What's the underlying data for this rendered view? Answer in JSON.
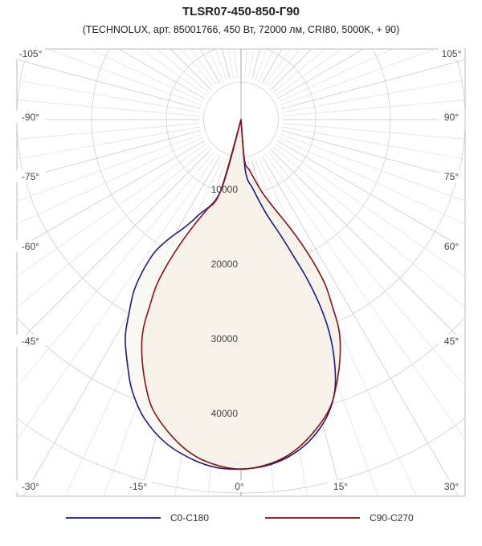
{
  "chart_data": {
    "type": "polar-luminous-intensity",
    "title": "TLSR07-450-850-Г90",
    "subtitle": "(TECHNOLUX, арт. 85001766, 450 Вт, 72000 лм, CRI80, 5000K, + 90)",
    "radial_ticks": [
      "10000",
      "20000",
      "30000",
      "40000"
    ],
    "radial_tick_values": [
      10000,
      20000,
      30000,
      40000
    ],
    "angle_ticks_left": [
      "-105°",
      "-90°",
      "-75°",
      "-60°",
      "-45°",
      "-30°",
      "-15°",
      "0°"
    ],
    "angle_ticks_right": [
      "105°",
      "90°",
      "75°",
      "60°",
      "45°",
      "30°",
      "15°"
    ],
    "angle_tick_values_left": [
      -105,
      -90,
      -75,
      -60,
      -45,
      -30,
      -15,
      0
    ],
    "angle_tick_values_right": [
      105,
      90,
      75,
      60,
      45,
      30,
      15
    ],
    "gamma_unit": "degrees, 0 = nadir (down), curve plotted relative to the 90° offset",
    "series": [
      {
        "name": "C0-C180",
        "color": "#1a1a8c",
        "points": [
          [
            -16,
            10000
          ],
          [
            -24,
            14000
          ],
          [
            -28,
            16500
          ],
          [
            -31,
            18500
          ],
          [
            -33,
            21000
          ],
          [
            -33,
            24000
          ],
          [
            -32,
            27000
          ],
          [
            -30,
            30000
          ],
          [
            -28,
            33000
          ],
          [
            -25,
            36000
          ],
          [
            -22,
            39000
          ],
          [
            -18,
            42000
          ],
          [
            -13,
            44500
          ],
          [
            -8,
            46000
          ],
          [
            -4,
            46700
          ],
          [
            0,
            46800
          ],
          [
            4,
            46500
          ],
          [
            8,
            45600
          ],
          [
            12,
            44000
          ],
          [
            16,
            41500
          ],
          [
            19,
            38500
          ],
          [
            21,
            35000
          ],
          [
            22.5,
            31000
          ],
          [
            23,
            27000
          ],
          [
            22.5,
            23000
          ],
          [
            21,
            19500
          ],
          [
            19,
            16500
          ],
          [
            15,
            13000
          ],
          [
            10,
            9500
          ],
          [
            5,
            7000
          ],
          [
            0,
            0
          ]
        ]
      },
      {
        "name": "C90-C270",
        "color": "#8b1010",
        "points": [
          [
            -16,
            10000
          ],
          [
            -21,
            13000
          ],
          [
            -24,
            15500
          ],
          [
            -26,
            18500
          ],
          [
            -27,
            22000
          ],
          [
            -27,
            25000
          ],
          [
            -26,
            28000
          ],
          [
            -25,
            31000
          ],
          [
            -23,
            34000
          ],
          [
            -20,
            37500
          ],
          [
            -17,
            40500
          ],
          [
            -13,
            43000
          ],
          [
            -9,
            45000
          ],
          [
            -5,
            46200
          ],
          [
            0,
            46800
          ],
          [
            5,
            46200
          ],
          [
            9,
            45000
          ],
          [
            13,
            43000
          ],
          [
            17,
            40500
          ],
          [
            20,
            37500
          ],
          [
            23,
            34000
          ],
          [
            25,
            31000
          ],
          [
            26,
            28000
          ],
          [
            27,
            25000
          ],
          [
            27,
            22000
          ],
          [
            26,
            18500
          ],
          [
            24,
            15500
          ],
          [
            21,
            13000
          ],
          [
            16,
            10000
          ],
          [
            10,
            7000
          ],
          [
            5,
            5500
          ],
          [
            0,
            0
          ]
        ]
      }
    ],
    "legend": [
      {
        "name": "C0-C180",
        "color": "#1a1a8c"
      },
      {
        "name": "C90-C270",
        "color": "#8b1010"
      }
    ],
    "grid": true,
    "legend_position": "bottom"
  }
}
